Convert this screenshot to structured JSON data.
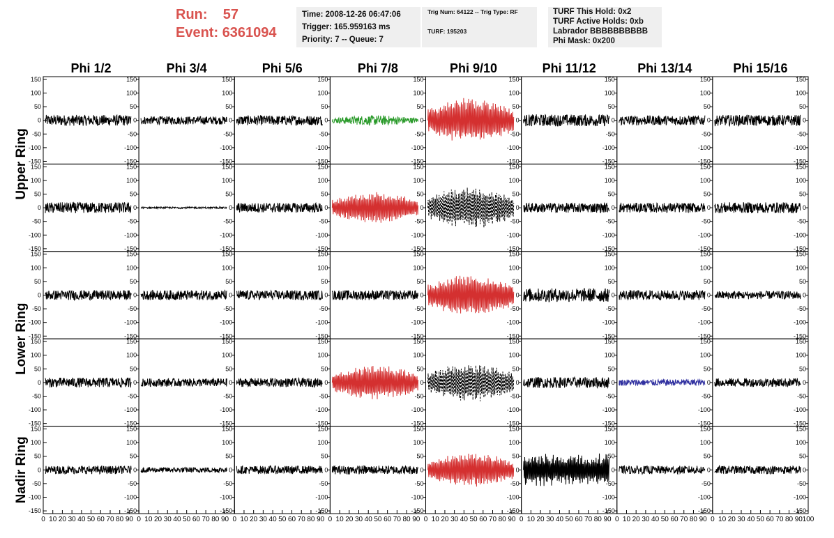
{
  "header": {
    "run_label": "Run:",
    "run_value": "57",
    "event_label": "Event:",
    "event_value": "6361094"
  },
  "info_time": {
    "time": "Time: 2008-12-26 06:47:06",
    "trigger": "Trigger: 165.959163 ms",
    "priority": "Priority: 7 -- Queue: 7"
  },
  "info_trig": {
    "trig": "Trig Num: 64122 -- Trig Type: RF",
    "turf": "TURF: 195203"
  },
  "info_turf": {
    "hold": "TURF This Hold: 0x2",
    "active": "TURF Active Holds: 0xb",
    "labrador": "Labrador BBBBBBBBBB",
    "phimask": "Phi Mask: 0x200"
  },
  "columns": [
    "Phi 1/2",
    "Phi 3/4",
    "Phi 5/6",
    "Phi 7/8",
    "Phi 9/10",
    "Phi 11/12",
    "Phi 13/14",
    "Phi 15/16"
  ],
  "rows": [
    "Upper Ring",
    "Lower Ring",
    "Nadir Ring"
  ],
  "y_ticks": [
    "150",
    "100",
    "50",
    "0",
    "-50",
    "-100",
    "-150"
  ],
  "x_ticks": [
    "0",
    "10",
    "20",
    "30",
    "40",
    "50",
    "60",
    "70",
    "80",
    "90",
    "100"
  ],
  "colors": {
    "header_red": "#d9534f",
    "trace_black": "#000000",
    "trace_red": "#d43030",
    "trace_green": "#2a9a2a",
    "trace_blue": "#3030a0",
    "info_bg": "#efefef"
  },
  "chart_data": {
    "type": "line",
    "xlim": [
      0,
      100
    ],
    "ylim": [
      -160,
      160
    ],
    "panel_rows": 5,
    "panel_cols": 8,
    "panel_styles": [
      [
        "black",
        "black",
        "black",
        "green",
        "red",
        "black",
        "black",
        "black"
      ],
      [
        "black",
        "black-flat",
        "black",
        "red",
        "black-dashed",
        "black",
        "black",
        "black"
      ],
      [
        "black",
        "black",
        "black",
        "black",
        "red",
        "black",
        "black",
        "black"
      ],
      [
        "black",
        "black",
        "black",
        "red",
        "black-dashed",
        "black",
        "blue",
        "black"
      ],
      [
        "black",
        "black",
        "black",
        "black",
        "red",
        "black-large",
        "black",
        "black"
      ]
    ],
    "panel_amplitudes": [
      [
        20,
        15,
        18,
        15,
        60,
        22,
        18,
        20
      ],
      [
        20,
        3,
        18,
        40,
        55,
        18,
        18,
        20
      ],
      [
        18,
        18,
        18,
        18,
        55,
        25,
        18,
        15
      ],
      [
        18,
        15,
        16,
        45,
        50,
        20,
        12,
        16
      ],
      [
        15,
        10,
        15,
        16,
        45,
        55,
        15,
        15
      ]
    ]
  }
}
